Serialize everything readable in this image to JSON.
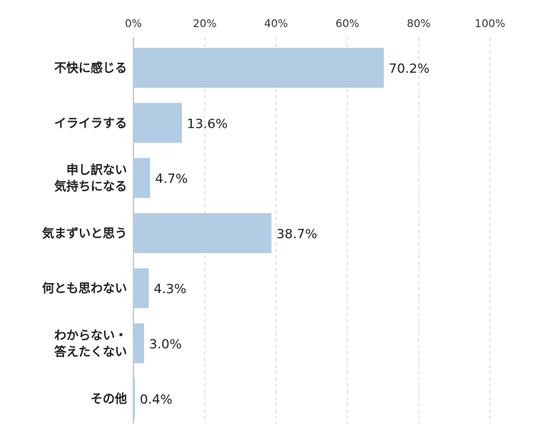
{
  "chart_data": {
    "type": "bar",
    "orientation": "horizontal",
    "categories": [
      [
        "不快に感じる"
      ],
      [
        "イライラする"
      ],
      [
        "申し訳ない",
        "気持ちになる"
      ],
      [
        "気まずいと思う"
      ],
      [
        "何とも思わない"
      ],
      [
        "わからない・",
        "答えたくない"
      ],
      [
        "その他"
      ]
    ],
    "values": [
      70.2,
      13.6,
      4.7,
      38.7,
      4.3,
      3.0,
      0.4
    ],
    "value_labels": [
      "70.2%",
      "13.6%",
      "4.7%",
      "38.7%",
      "4.3%",
      "3.0%",
      "0.4%"
    ],
    "x_ticks": [
      0,
      20,
      40,
      60,
      80,
      100
    ],
    "x_tick_labels": [
      "0%",
      "20%",
      "40%",
      "60%",
      "80%",
      "100%"
    ],
    "xlim": [
      0,
      100
    ],
    "title": "",
    "xlabel": "",
    "ylabel": "",
    "grid": true,
    "legend": "none",
    "bar_color": "#b1cce3"
  }
}
